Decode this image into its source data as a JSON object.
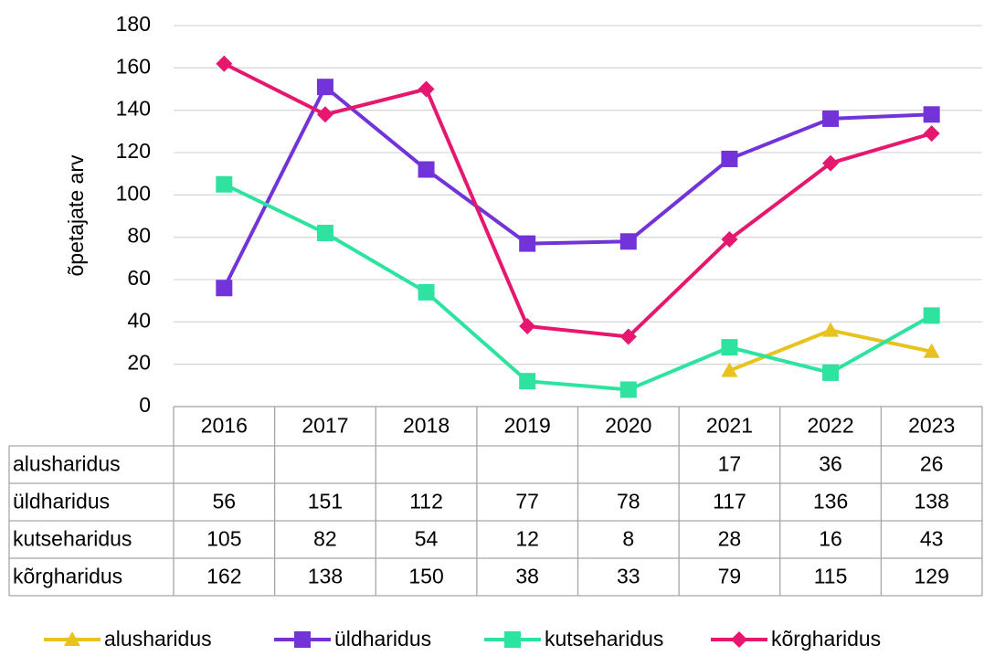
{
  "chart_data": {
    "type": "line",
    "y_label": "õpetajate arv",
    "categories": [
      "2016",
      "2017",
      "2018",
      "2019",
      "2020",
      "2021",
      "2022",
      "2023"
    ],
    "series": [
      {
        "name": "alusharidus",
        "color": "#e8c21e",
        "marker": "triangle",
        "values": [
          null,
          null,
          null,
          null,
          null,
          17,
          36,
          26
        ]
      },
      {
        "name": "üldharidus",
        "color": "#7234d9",
        "marker": "square",
        "values": [
          56,
          151,
          112,
          77,
          78,
          117,
          136,
          138
        ]
      },
      {
        "name": "kutseharidus",
        "color": "#2ee3a0",
        "marker": "square",
        "values": [
          105,
          82,
          54,
          12,
          8,
          28,
          16,
          43
        ]
      },
      {
        "name": "kõrgharidus",
        "color": "#e5176f",
        "marker": "diamond",
        "values": [
          162,
          138,
          150,
          38,
          33,
          79,
          115,
          129
        ]
      }
    ],
    "ylim": [
      0,
      180
    ],
    "yticks": [
      0,
      20,
      40,
      60,
      80,
      100,
      120,
      140,
      160,
      180
    ],
    "grid": true,
    "legend": "bottom",
    "data_table": true
  }
}
